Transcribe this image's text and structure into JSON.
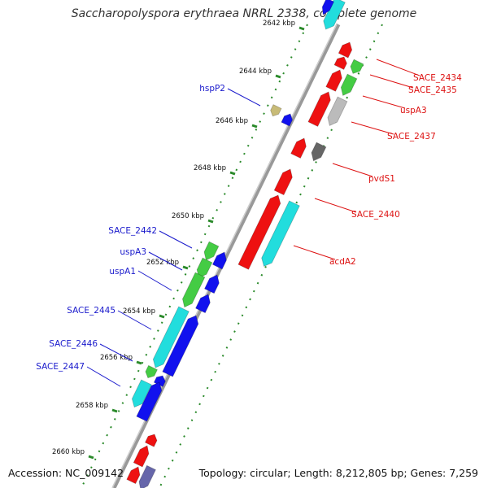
{
  "title": "Saccharopolyspora erythraea NRRL 2338, complete genome",
  "footer": {
    "accession": "Accession: NC_009142",
    "summary": "Topology: circular; Length: 8,212,805 bp; Genes: 7,259"
  },
  "ticks": [
    "2642 kbp",
    "2644 kbp",
    "2646 kbp",
    "2648 kbp",
    "2650 kbp",
    "2652 kbp",
    "2654 kbp",
    "2656 kbp",
    "2658 kbp",
    "2660 kbp"
  ],
  "labels_left": [
    "hspP2",
    "SACE_2442",
    "uspA3",
    "uspA1",
    "SACE_2445",
    "SACE_2446",
    "SACE_2447"
  ],
  "labels_right": [
    "SACE_2434",
    "SACE_2435",
    "uspA3",
    "SACE_2437",
    "pvdS1",
    "SACE_2440",
    "acdA2"
  ],
  "colors": {
    "label_left": "#1a1acc",
    "label_right": "#dd1111",
    "backbone": "#8a8a8a",
    "tick_dots": "#2a8a2a",
    "cds_red": "#ee1111",
    "cds_green": "#44cc44",
    "cds_blue": "#1111ee",
    "cds_cyan": "#22dddd",
    "cds_gray": "#bbbbbb",
    "cds_dark_gray": "#666666",
    "cds_khaki": "#c8bb77",
    "cds_purple": "#6666aa"
  }
}
